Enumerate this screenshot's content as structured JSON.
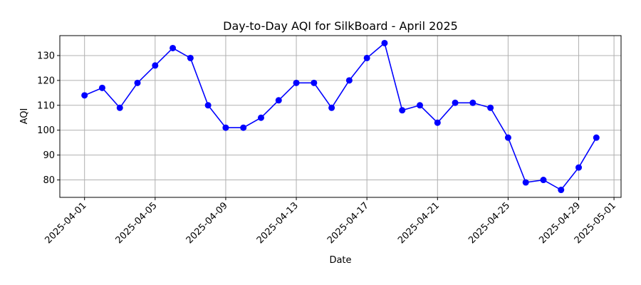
{
  "chart_data": {
    "type": "line",
    "title": "Day-to-Day AQI for SilkBoard - April 2025",
    "xlabel": "Date",
    "ylabel": "AQI",
    "x": [
      "2025-04-01",
      "2025-04-02",
      "2025-04-03",
      "2025-04-04",
      "2025-04-05",
      "2025-04-06",
      "2025-04-07",
      "2025-04-08",
      "2025-04-09",
      "2025-04-10",
      "2025-04-11",
      "2025-04-12",
      "2025-04-13",
      "2025-04-14",
      "2025-04-15",
      "2025-04-16",
      "2025-04-17",
      "2025-04-18",
      "2025-04-19",
      "2025-04-20",
      "2025-04-21",
      "2025-04-22",
      "2025-04-23",
      "2025-04-24",
      "2025-04-25",
      "2025-04-26",
      "2025-04-27",
      "2025-04-28",
      "2025-04-29",
      "2025-04-30"
    ],
    "series": [
      {
        "color": "#0000ff",
        "marker": "circle",
        "values": [
          114,
          117,
          109,
          119,
          126,
          133,
          129,
          110,
          101,
          101,
          105,
          112,
          119,
          119,
          109,
          120,
          129,
          135,
          108,
          110,
          103,
          111,
          111,
          109,
          97,
          79,
          80,
          76,
          85,
          97
        ]
      }
    ],
    "xticks": [
      "2025-04-01",
      "2025-04-05",
      "2025-04-09",
      "2025-04-13",
      "2025-04-17",
      "2025-04-21",
      "2025-04-25",
      "2025-04-29",
      "2025-05-01"
    ],
    "yticks": [
      80,
      90,
      100,
      110,
      120,
      130
    ],
    "xlim": [
      "2025-03-30T14:24",
      "2025-05-01T09:36"
    ],
    "ylim": [
      73,
      138
    ],
    "grid": true
  }
}
